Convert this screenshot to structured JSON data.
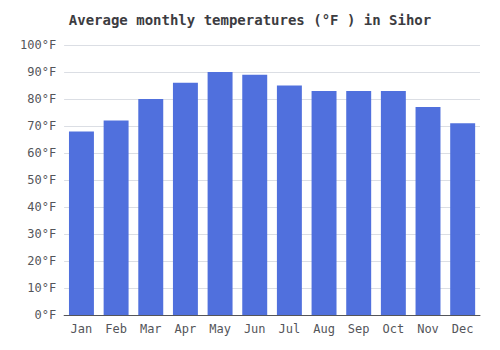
{
  "chart_data": {
    "type": "bar",
    "title": "Average monthly temperatures (°F ) in Sihor",
    "categories": [
      "Jan",
      "Feb",
      "Mar",
      "Apr",
      "May",
      "Jun",
      "Jul",
      "Aug",
      "Sep",
      "Oct",
      "Nov",
      "Dec"
    ],
    "values": [
      68,
      72,
      80,
      86,
      90,
      89,
      85,
      83,
      83,
      83,
      77,
      71
    ],
    "ylim": [
      0,
      100
    ],
    "yticks": [
      {
        "value": 0,
        "label": "0°F"
      },
      {
        "value": 10,
        "label": "10°F"
      },
      {
        "value": 20,
        "label": "20°F"
      },
      {
        "value": 30,
        "label": "30°F"
      },
      {
        "value": 40,
        "label": "40°F"
      },
      {
        "value": 50,
        "label": "50°F"
      },
      {
        "value": 60,
        "label": "60°F"
      },
      {
        "value": 70,
        "label": "70°F"
      },
      {
        "value": 80,
        "label": "80°F"
      },
      {
        "value": 90,
        "label": "90°F"
      },
      {
        "value": 100,
        "label": "100°F"
      }
    ],
    "grid": true
  }
}
